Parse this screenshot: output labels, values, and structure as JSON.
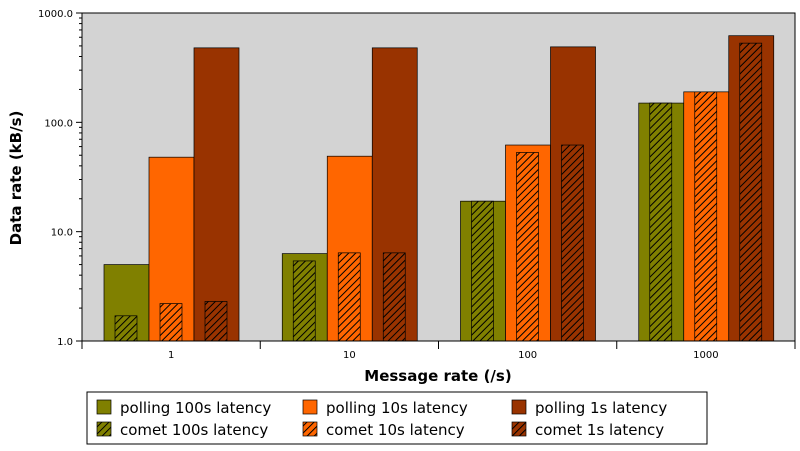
{
  "chart_data": {
    "type": "bar",
    "title": "",
    "xlabel": "Message rate (/s)",
    "ylabel": "Data rate (kB/s)",
    "y_scale": "log",
    "ylim": [
      1,
      1000
    ],
    "y_ticks": [
      1,
      10,
      100,
      1000
    ],
    "y_tick_labels": [
      "1.0",
      "10.0",
      "100.0",
      "1000.0"
    ],
    "categories": [
      "1",
      "10",
      "100",
      "1000"
    ],
    "grid": false,
    "legend_position": "bottom",
    "series": [
      {
        "name": "polling 100s latency",
        "values": [
          5.0,
          6.3,
          19.0,
          150.0
        ],
        "color": "#808000",
        "hatched": false,
        "group": "polling"
      },
      {
        "name": "polling 10s latency",
        "values": [
          48.0,
          49.0,
          62.0,
          190.0
        ],
        "color": "#ff6600",
        "hatched": false,
        "group": "polling"
      },
      {
        "name": "polling 1s latency",
        "values": [
          480.0,
          480.0,
          490.0,
          620.0
        ],
        "color": "#993300",
        "hatched": false,
        "group": "polling"
      },
      {
        "name": "comet 100s latency",
        "values": [
          1.7,
          5.4,
          19.0,
          150.0
        ],
        "color": "#808000",
        "hatched": true,
        "group": "comet"
      },
      {
        "name": "comet 10s latency",
        "values": [
          2.2,
          6.4,
          53.0,
          190.0
        ],
        "color": "#ff6600",
        "hatched": true,
        "group": "comet"
      },
      {
        "name": "comet 1s latency",
        "values": [
          2.3,
          6.4,
          62.0,
          530.0
        ],
        "color": "#993300",
        "hatched": true,
        "group": "comet"
      }
    ],
    "colors": {
      "plot_background": "#d3d3d3",
      "border": "#000000"
    }
  }
}
